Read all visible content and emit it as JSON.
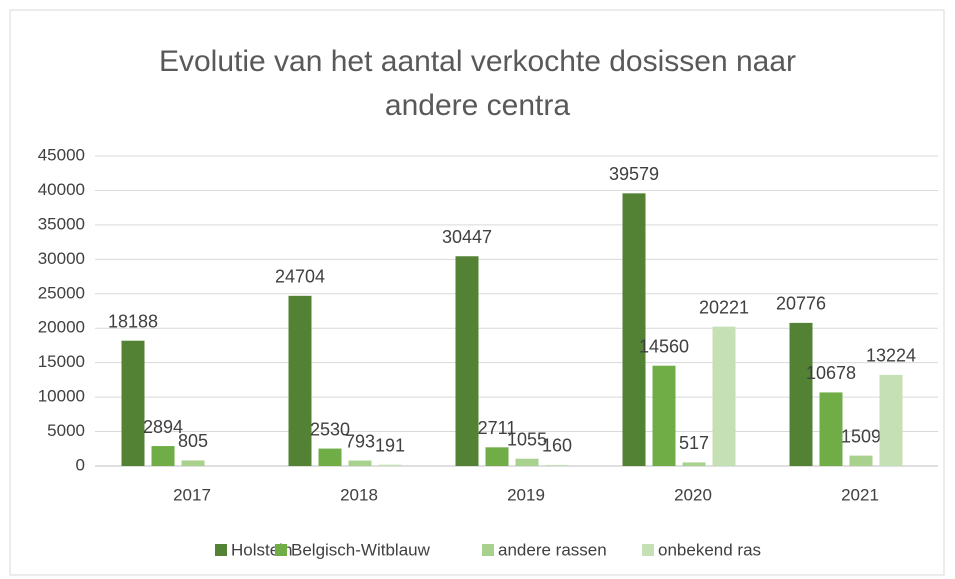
{
  "chart_data": {
    "type": "bar",
    "title": "Evolutie van het aantal verkochte dosissen naar andere centra",
    "categories": [
      "2017",
      "2018",
      "2019",
      "2020",
      "2021"
    ],
    "series": [
      {
        "name": "Holstein",
        "color": "#548235",
        "values": [
          18188,
          24704,
          30447,
          39579,
          20776
        ]
      },
      {
        "name": "Belgisch-Witblauw",
        "color": "#70ad47",
        "values": [
          2894,
          2530,
          2711,
          14560,
          10678
        ]
      },
      {
        "name": "andere rassen",
        "color": "#a9d18e",
        "values": [
          805,
          793,
          1055,
          517,
          1509
        ]
      },
      {
        "name": "onbekend ras",
        "color": "#c5e0b4",
        "values": [
          null,
          191,
          160,
          20221,
          13224
        ]
      }
    ],
    "ylim": [
      0,
      45000
    ],
    "yticks": [
      0,
      5000,
      10000,
      15000,
      20000,
      25000,
      30000,
      35000,
      40000,
      45000
    ],
    "grid": true,
    "legend": "bottom"
  }
}
